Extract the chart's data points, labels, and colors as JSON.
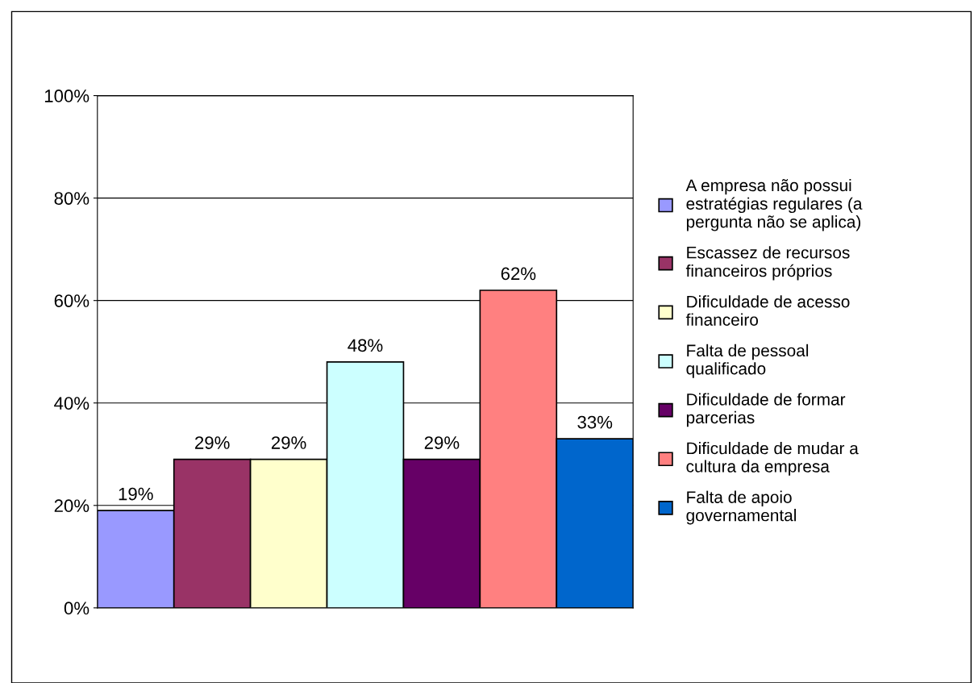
{
  "chart_data": {
    "type": "bar",
    "categories": [
      null
    ],
    "series": [
      {
        "name": "A empresa não possui\nestratégias regulares (a\npergunta não se aplica)",
        "color": "#9999ff",
        "values": [
          19
        ],
        "value_labels": [
          "19%"
        ]
      },
      {
        "name": "Escassez de recursos\nfinanceiros próprios",
        "color": "#993366",
        "values": [
          29
        ],
        "value_labels": [
          "29%"
        ]
      },
      {
        "name": "Dificuldade de acesso\nfinanceiro",
        "color": "#ffffcc",
        "values": [
          29
        ],
        "value_labels": [
          "29%"
        ]
      },
      {
        "name": "Falta de pessoal\nqualificado",
        "color": "#ccffff",
        "values": [
          48
        ],
        "value_labels": [
          "48%"
        ]
      },
      {
        "name": "Dificuldade de formar\nparcerias",
        "color": "#660066",
        "values": [
          29
        ],
        "value_labels": [
          "29%"
        ]
      },
      {
        "name": "Dificuldade de mudar a\ncultura da empresa",
        "color": "#ff8080",
        "values": [
          62
        ],
        "value_labels": [
          "62%"
        ]
      },
      {
        "name": "Falta de apoio\ngovernamental",
        "color": "#0066cc",
        "values": [
          33
        ],
        "value_labels": [
          "33%"
        ]
      }
    ],
    "ylim": [
      0,
      100
    ],
    "yticks": [
      {
        "value": 0,
        "label": "0%"
      },
      {
        "value": 20,
        "label": "20%"
      },
      {
        "value": 40,
        "label": "40%"
      },
      {
        "value": 60,
        "label": "60%"
      },
      {
        "value": 80,
        "label": "80%"
      },
      {
        "value": 100,
        "label": "100%"
      }
    ],
    "grid": "y",
    "legend": "right"
  }
}
